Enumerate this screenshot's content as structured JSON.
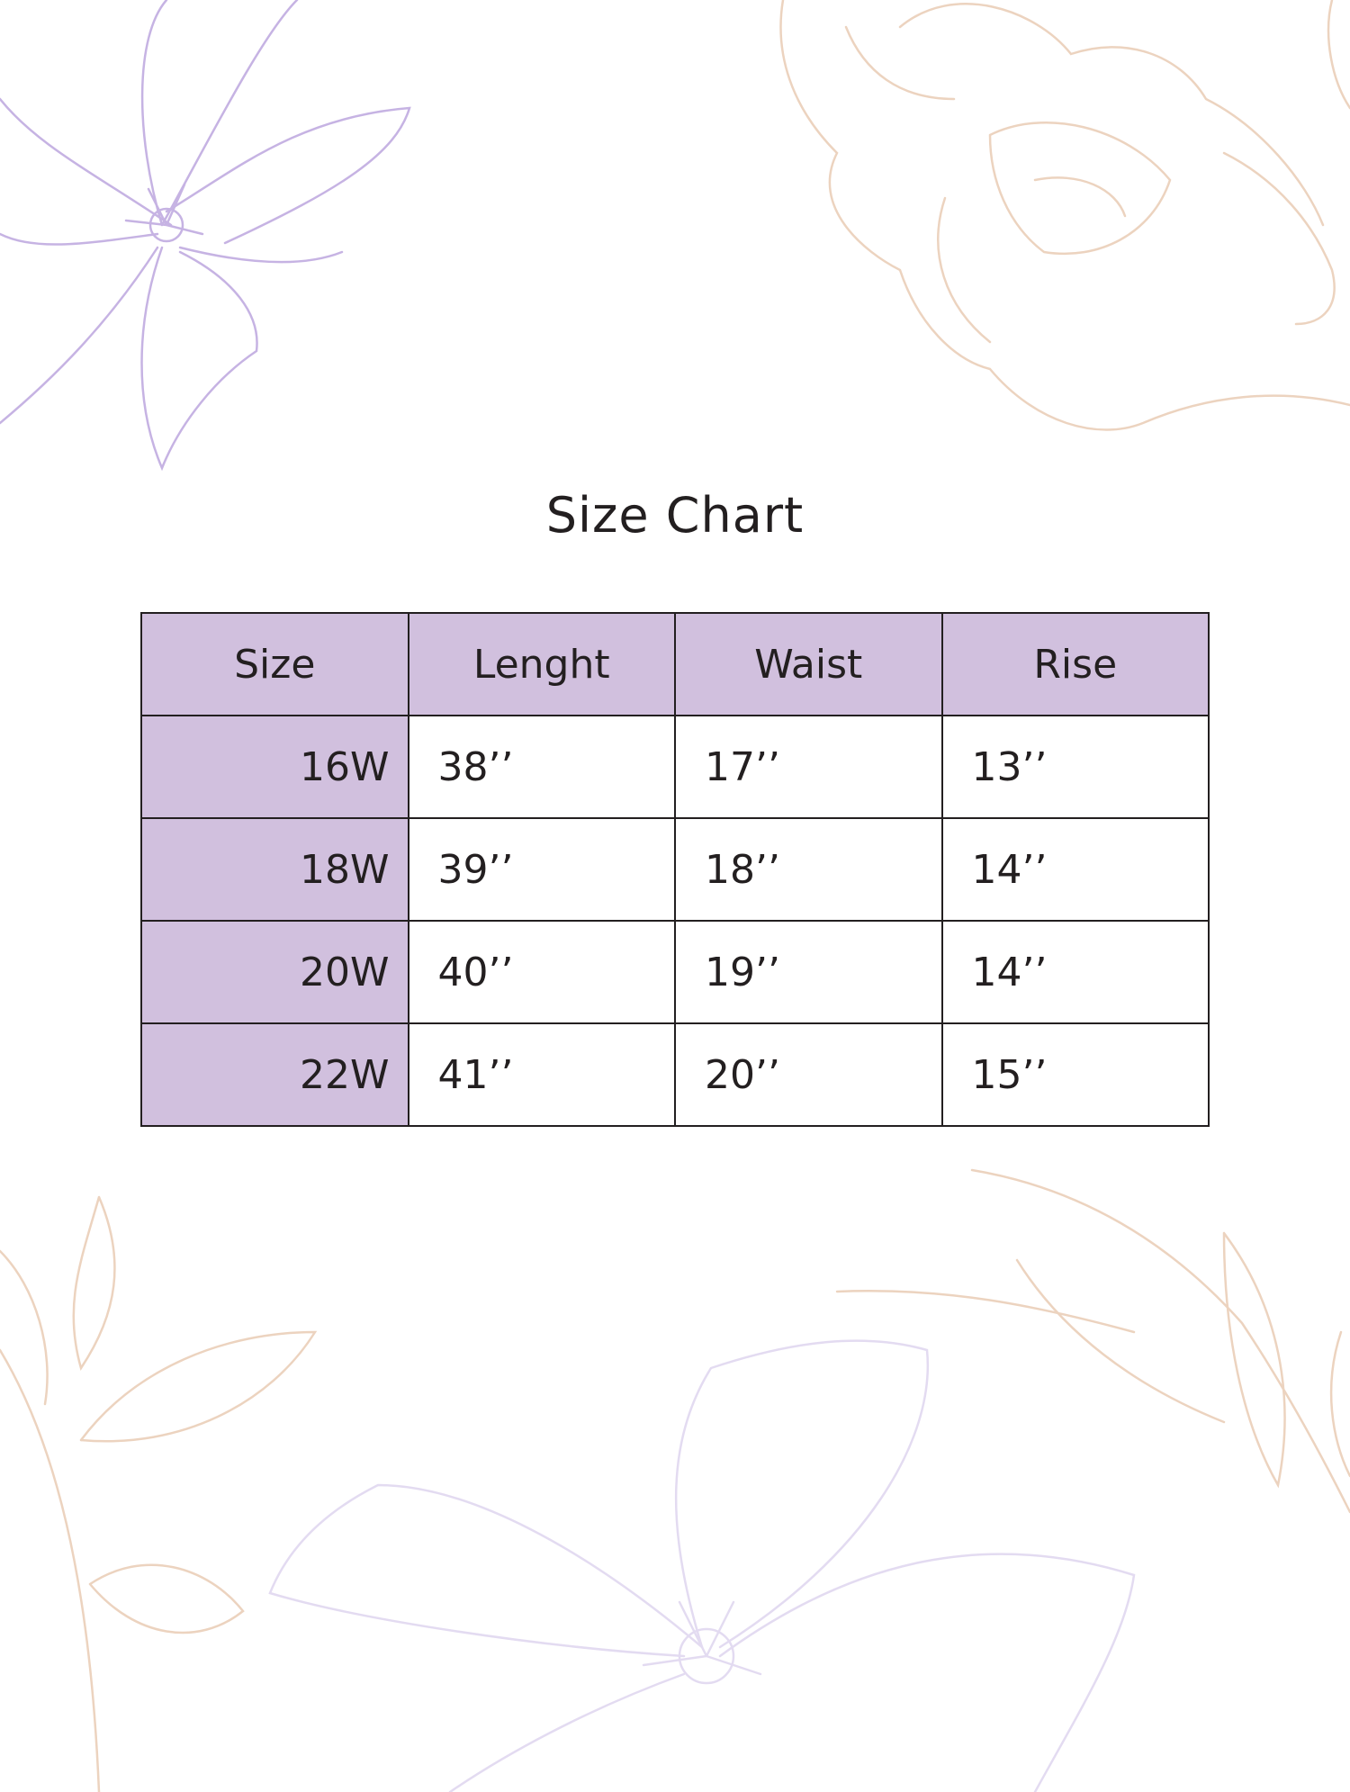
{
  "title": "Size Chart",
  "colors": {
    "header_fill": "#d1c0de",
    "text": "#231f20",
    "lilac_line": "#c6b3e3",
    "peach_line": "#ecd3bf"
  },
  "decorations": [
    "lilac-flower-icon",
    "peach-rose-icon",
    "peach-leaves-icon",
    "lilac-flower-bottom-icon"
  ],
  "table": {
    "headers": [
      "Size",
      "Lenght",
      "Waist",
      "Rise"
    ],
    "rows": [
      {
        "size": "16W",
        "length": "38’’",
        "waist": "17’’",
        "rise": "13’’"
      },
      {
        "size": "18W",
        "length": "39’’",
        "waist": "18’’",
        "rise": "14’’"
      },
      {
        "size": "20W",
        "length": "40’’",
        "waist": "19’’",
        "rise": "14’’"
      },
      {
        "size": "22W",
        "length": "41’’",
        "waist": "20’’",
        "rise": "15’’"
      }
    ]
  }
}
